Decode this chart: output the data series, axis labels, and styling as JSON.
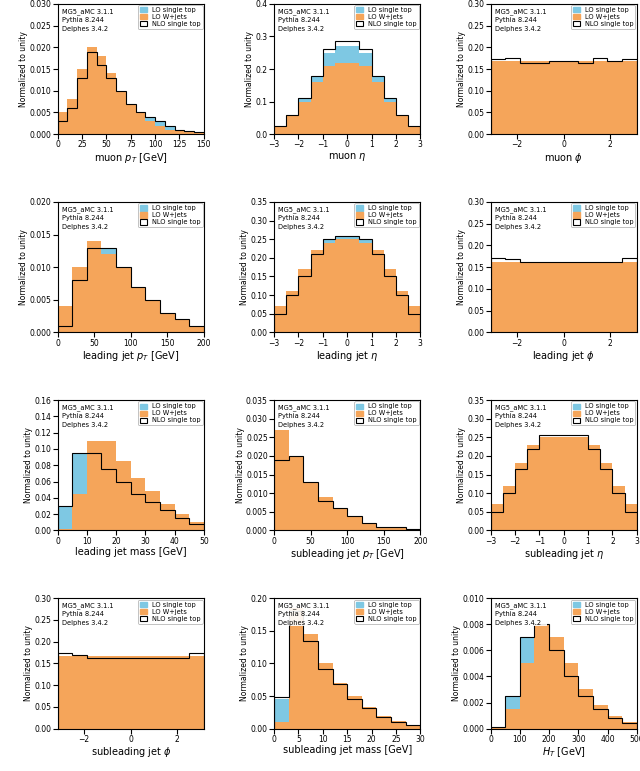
{
  "color_lo_single_top": "#7ec8e3",
  "color_lo_wjets": "#f5a55a",
  "legend_info": "MG5_aMC 3.1.1\nPythia 8.244\nDelphes 3.4.2",
  "plots": [
    {
      "xlabel": "muon $p_T$ [GeV]",
      "xlim": [
        0,
        150
      ],
      "ylim": [
        0,
        0.03
      ],
      "yticks": [
        0.0,
        0.005,
        0.01,
        0.015,
        0.02,
        0.025,
        0.03
      ],
      "lo_st_edges": [
        0,
        10,
        20,
        30,
        40,
        50,
        60,
        70,
        80,
        90,
        100,
        110,
        120,
        130,
        140,
        150
      ],
      "lo_st_vals": [
        0.003,
        0.006,
        0.013,
        0.019,
        0.016,
        0.013,
        0.01,
        0.007,
        0.005,
        0.004,
        0.003,
        0.002,
        0.001,
        0.0008,
        0.0004
      ],
      "lo_wj_edges": [
        0,
        10,
        20,
        30,
        40,
        50,
        60,
        70,
        80,
        90,
        100,
        110,
        120,
        130,
        140,
        150
      ],
      "lo_wj_vals": [
        0.005,
        0.008,
        0.015,
        0.02,
        0.018,
        0.014,
        0.01,
        0.007,
        0.005,
        0.003,
        0.002,
        0.001,
        0.0008,
        0.0005,
        0.0003
      ],
      "nlo_st_edges": [
        0,
        10,
        20,
        30,
        40,
        50,
        60,
        70,
        80,
        90,
        100,
        110,
        120,
        130,
        140,
        150
      ],
      "nlo_st_vals": [
        0.003,
        0.006,
        0.013,
        0.019,
        0.016,
        0.013,
        0.01,
        0.007,
        0.005,
        0.004,
        0.003,
        0.002,
        0.001,
        0.0008,
        0.0004
      ]
    },
    {
      "xlabel": "muon $\\eta$",
      "xlim": [
        -3.0,
        3.0
      ],
      "ylim": [
        0,
        0.4
      ],
      "yticks": [
        0.0,
        0.1,
        0.2,
        0.3,
        0.4
      ],
      "lo_st_edges": [
        -3.0,
        -2.5,
        -2.0,
        -1.5,
        -1.0,
        -0.5,
        0.0,
        0.5,
        1.0,
        1.5,
        2.0,
        2.5,
        3.0
      ],
      "lo_st_vals": [
        0.025,
        0.06,
        0.11,
        0.18,
        0.25,
        0.27,
        0.27,
        0.25,
        0.18,
        0.11,
        0.06,
        0.025
      ],
      "lo_wj_edges": [
        -3.0,
        -2.5,
        -2.0,
        -1.5,
        -1.0,
        -0.5,
        0.0,
        0.5,
        1.0,
        1.5,
        2.0,
        2.5,
        3.0
      ],
      "lo_wj_vals": [
        0.025,
        0.06,
        0.1,
        0.16,
        0.21,
        0.22,
        0.22,
        0.21,
        0.16,
        0.1,
        0.06,
        0.025
      ],
      "nlo_st_edges": [
        -3.0,
        -2.5,
        -2.0,
        -1.5,
        -1.0,
        -0.5,
        0.0,
        0.5,
        1.0,
        1.5,
        2.0,
        2.5,
        3.0
      ],
      "nlo_st_vals": [
        0.025,
        0.06,
        0.11,
        0.18,
        0.26,
        0.285,
        0.285,
        0.26,
        0.18,
        0.11,
        0.06,
        0.025
      ]
    },
    {
      "xlabel": "muon $\\phi$",
      "xlim": [
        -3.14,
        3.14
      ],
      "ylim": [
        0,
        0.3
      ],
      "yticks": [
        0.0,
        0.05,
        0.1,
        0.15,
        0.2,
        0.25,
        0.3
      ],
      "lo_st_edges": [
        -3.14,
        -2.51,
        -1.88,
        -1.26,
        -0.63,
        0.0,
        0.63,
        1.26,
        1.88,
        2.51,
        3.14
      ],
      "lo_st_vals": [
        0.168,
        0.168,
        0.168,
        0.168,
        0.168,
        0.168,
        0.168,
        0.168,
        0.168,
        0.168
      ],
      "lo_wj_edges": [
        -3.14,
        -2.51,
        -1.88,
        -1.26,
        -0.63,
        0.0,
        0.63,
        1.26,
        1.88,
        2.51,
        3.14
      ],
      "lo_wj_vals": [
        0.168,
        0.168,
        0.168,
        0.168,
        0.168,
        0.168,
        0.168,
        0.168,
        0.168,
        0.168
      ],
      "nlo_st_edges": [
        -3.14,
        -2.51,
        -1.88,
        -1.26,
        -0.63,
        0.0,
        0.63,
        1.26,
        1.88,
        2.51,
        3.14
      ],
      "nlo_st_vals": [
        0.172,
        0.175,
        0.165,
        0.165,
        0.168,
        0.168,
        0.165,
        0.175,
        0.168,
        0.172
      ]
    },
    {
      "xlabel": "leading jet $p_T$ [GeV]",
      "xlim": [
        0,
        200
      ],
      "ylim": [
        0,
        0.02
      ],
      "yticks": [
        0.0,
        0.005,
        0.01,
        0.015,
        0.02
      ],
      "lo_st_edges": [
        0,
        20,
        40,
        60,
        80,
        100,
        120,
        140,
        160,
        180,
        200
      ],
      "lo_st_vals": [
        0.001,
        0.007,
        0.013,
        0.013,
        0.01,
        0.007,
        0.005,
        0.003,
        0.002,
        0.001
      ],
      "lo_wj_edges": [
        0,
        20,
        40,
        60,
        80,
        100,
        120,
        140,
        160,
        180,
        200
      ],
      "lo_wj_vals": [
        0.004,
        0.01,
        0.014,
        0.012,
        0.01,
        0.007,
        0.005,
        0.003,
        0.002,
        0.001
      ],
      "nlo_st_edges": [
        0,
        20,
        40,
        60,
        80,
        100,
        120,
        140,
        160,
        180,
        200
      ],
      "nlo_st_vals": [
        0.001,
        0.008,
        0.013,
        0.013,
        0.01,
        0.007,
        0.005,
        0.003,
        0.002,
        0.001
      ]
    },
    {
      "xlabel": "leading jet $\\eta$",
      "xlim": [
        -3.0,
        3.0
      ],
      "ylim": [
        0,
        0.35
      ],
      "yticks": [
        0.0,
        0.05,
        0.1,
        0.15,
        0.2,
        0.25,
        0.3,
        0.35
      ],
      "lo_st_edges": [
        -3.0,
        -2.5,
        -2.0,
        -1.5,
        -1.0,
        -0.5,
        0.0,
        0.5,
        1.0,
        1.5,
        2.0,
        2.5,
        3.0
      ],
      "lo_st_vals": [
        0.05,
        0.1,
        0.15,
        0.21,
        0.25,
        0.26,
        0.26,
        0.25,
        0.21,
        0.15,
        0.1,
        0.05
      ],
      "lo_wj_edges": [
        -3.0,
        -2.5,
        -2.0,
        -1.5,
        -1.0,
        -0.5,
        0.0,
        0.5,
        1.0,
        1.5,
        2.0,
        2.5,
        3.0
      ],
      "lo_wj_vals": [
        0.07,
        0.11,
        0.17,
        0.22,
        0.24,
        0.25,
        0.25,
        0.24,
        0.22,
        0.17,
        0.11,
        0.07
      ],
      "nlo_st_edges": [
        -3.0,
        -2.5,
        -2.0,
        -1.5,
        -1.0,
        -0.5,
        0.0,
        0.5,
        1.0,
        1.5,
        2.0,
        2.5,
        3.0
      ],
      "nlo_st_vals": [
        0.05,
        0.1,
        0.15,
        0.21,
        0.25,
        0.26,
        0.26,
        0.25,
        0.21,
        0.15,
        0.1,
        0.05
      ]
    },
    {
      "xlabel": "leading jet $\\phi$",
      "xlim": [
        -3.14,
        3.14
      ],
      "ylim": [
        0,
        0.3
      ],
      "yticks": [
        0.0,
        0.05,
        0.1,
        0.15,
        0.2,
        0.25,
        0.3
      ],
      "lo_st_edges": [
        -3.14,
        -2.51,
        -1.88,
        -1.26,
        -0.63,
        0.0,
        0.63,
        1.26,
        1.88,
        2.51,
        3.14
      ],
      "lo_st_vals": [
        0.163,
        0.163,
        0.163,
        0.163,
        0.163,
        0.163,
        0.163,
        0.163,
        0.163,
        0.163
      ],
      "lo_wj_edges": [
        -3.14,
        -2.51,
        -1.88,
        -1.26,
        -0.63,
        0.0,
        0.63,
        1.26,
        1.88,
        2.51,
        3.14
      ],
      "lo_wj_vals": [
        0.163,
        0.163,
        0.163,
        0.163,
        0.163,
        0.163,
        0.163,
        0.163,
        0.163,
        0.163
      ],
      "nlo_st_edges": [
        -3.14,
        -2.51,
        -1.88,
        -1.26,
        -0.63,
        0.0,
        0.63,
        1.26,
        1.88,
        2.51,
        3.14
      ],
      "nlo_st_vals": [
        0.17,
        0.168,
        0.163,
        0.163,
        0.163,
        0.163,
        0.163,
        0.163,
        0.163,
        0.17
      ]
    },
    {
      "xlabel": "leading jet mass [GeV]",
      "xlim": [
        0,
        50
      ],
      "ylim": [
        0,
        0.16
      ],
      "yticks": [
        0.0,
        0.02,
        0.04,
        0.06,
        0.08,
        0.1,
        0.12,
        0.14,
        0.16
      ],
      "lo_st_edges": [
        0,
        5,
        10,
        15,
        20,
        25,
        30,
        35,
        40,
        45,
        50
      ],
      "lo_st_vals": [
        0.03,
        0.095,
        0.095,
        0.075,
        0.06,
        0.045,
        0.035,
        0.025,
        0.015,
        0.008
      ],
      "lo_wj_edges": [
        0,
        5,
        10,
        15,
        20,
        25,
        30,
        35,
        40,
        45,
        50
      ],
      "lo_wj_vals": [
        0.002,
        0.045,
        0.11,
        0.11,
        0.085,
        0.065,
        0.048,
        0.032,
        0.02,
        0.01
      ],
      "nlo_st_edges": [
        0,
        5,
        10,
        15,
        20,
        25,
        30,
        35,
        40,
        45,
        50
      ],
      "nlo_st_vals": [
        0.03,
        0.095,
        0.095,
        0.075,
        0.06,
        0.045,
        0.035,
        0.025,
        0.015,
        0.008
      ]
    },
    {
      "xlabel": "subleading jet $p_T$ [GeV]",
      "xlim": [
        0,
        200
      ],
      "ylim": [
        0,
        0.035
      ],
      "yticks": [
        0.0,
        0.005,
        0.01,
        0.015,
        0.02,
        0.025,
        0.03,
        0.035
      ],
      "lo_st_edges": [
        0,
        20,
        40,
        60,
        80,
        100,
        120,
        140,
        160,
        180,
        200
      ],
      "lo_st_vals": [
        0.018,
        0.02,
        0.013,
        0.008,
        0.006,
        0.004,
        0.002,
        0.001,
        0.0008,
        0.0004
      ],
      "lo_wj_edges": [
        0,
        20,
        40,
        60,
        80,
        100,
        120,
        140,
        160,
        180,
        200
      ],
      "lo_wj_vals": [
        0.027,
        0.02,
        0.013,
        0.009,
        0.006,
        0.004,
        0.002,
        0.001,
        0.0008,
        0.0004
      ],
      "nlo_st_edges": [
        0,
        20,
        40,
        60,
        80,
        100,
        120,
        140,
        160,
        180,
        200
      ],
      "nlo_st_vals": [
        0.019,
        0.02,
        0.013,
        0.008,
        0.006,
        0.004,
        0.002,
        0.001,
        0.0008,
        0.0004
      ]
    },
    {
      "xlabel": "subleading jet $\\eta$",
      "xlim": [
        -3.0,
        3.0
      ],
      "ylim": [
        0,
        0.35
      ],
      "yticks": [
        0.0,
        0.05,
        0.1,
        0.15,
        0.2,
        0.25,
        0.3,
        0.35
      ],
      "lo_st_edges": [
        -3.0,
        -2.5,
        -2.0,
        -1.5,
        -1.0,
        -0.5,
        0.0,
        0.5,
        1.0,
        1.5,
        2.0,
        2.5,
        3.0
      ],
      "lo_st_vals": [
        0.05,
        0.1,
        0.16,
        0.22,
        0.25,
        0.25,
        0.25,
        0.25,
        0.22,
        0.16,
        0.1,
        0.05
      ],
      "lo_wj_edges": [
        -3.0,
        -2.5,
        -2.0,
        -1.5,
        -1.0,
        -0.5,
        0.0,
        0.5,
        1.0,
        1.5,
        2.0,
        2.5,
        3.0
      ],
      "lo_wj_vals": [
        0.07,
        0.12,
        0.18,
        0.23,
        0.25,
        0.25,
        0.25,
        0.25,
        0.23,
        0.18,
        0.12,
        0.07
      ],
      "nlo_st_edges": [
        -3.0,
        -2.5,
        -2.0,
        -1.5,
        -1.0,
        -0.5,
        0.0,
        0.5,
        1.0,
        1.5,
        2.0,
        2.5,
        3.0
      ],
      "nlo_st_vals": [
        0.05,
        0.1,
        0.165,
        0.22,
        0.255,
        0.255,
        0.255,
        0.255,
        0.22,
        0.165,
        0.1,
        0.05
      ]
    },
    {
      "xlabel": "subleading jet $\\phi$",
      "xlim": [
        -3.14,
        3.14
      ],
      "ylim": [
        0,
        0.3
      ],
      "yticks": [
        0.0,
        0.05,
        0.1,
        0.15,
        0.2,
        0.25,
        0.3
      ],
      "lo_st_edges": [
        -3.14,
        -2.51,
        -1.88,
        -1.26,
        -0.63,
        0.0,
        0.63,
        1.26,
        1.88,
        2.51,
        3.14
      ],
      "lo_st_vals": [
        0.163,
        0.163,
        0.163,
        0.163,
        0.163,
        0.163,
        0.163,
        0.163,
        0.163,
        0.163
      ],
      "lo_wj_edges": [
        -3.14,
        -2.51,
        -1.88,
        -1.26,
        -0.63,
        0.0,
        0.63,
        1.26,
        1.88,
        2.51,
        3.14
      ],
      "lo_wj_vals": [
        0.168,
        0.168,
        0.168,
        0.168,
        0.168,
        0.168,
        0.168,
        0.168,
        0.168,
        0.168
      ],
      "nlo_st_edges": [
        -3.14,
        -2.51,
        -1.88,
        -1.26,
        -0.63,
        0.0,
        0.63,
        1.26,
        1.88,
        2.51,
        3.14
      ],
      "nlo_st_vals": [
        0.175,
        0.17,
        0.163,
        0.163,
        0.163,
        0.163,
        0.163,
        0.163,
        0.163,
        0.175
      ]
    },
    {
      "xlabel": "subleading jet mass [GeV]",
      "xlim": [
        0,
        30
      ],
      "ylim": [
        0,
        0.2
      ],
      "yticks": [
        0.0,
        0.05,
        0.1,
        0.15,
        0.2
      ],
      "lo_st_edges": [
        0,
        3,
        6,
        9,
        12,
        15,
        18,
        21,
        24,
        27,
        30
      ],
      "lo_st_vals": [
        0.045,
        0.175,
        0.13,
        0.09,
        0.065,
        0.045,
        0.03,
        0.018,
        0.01,
        0.005
      ],
      "lo_wj_edges": [
        0,
        3,
        6,
        9,
        12,
        15,
        18,
        21,
        24,
        27,
        30
      ],
      "lo_wj_vals": [
        0.01,
        0.185,
        0.145,
        0.1,
        0.07,
        0.05,
        0.033,
        0.02,
        0.012,
        0.006
      ],
      "nlo_st_edges": [
        0,
        3,
        6,
        9,
        12,
        15,
        18,
        21,
        24,
        27,
        30
      ],
      "nlo_st_vals": [
        0.048,
        0.18,
        0.135,
        0.092,
        0.068,
        0.046,
        0.031,
        0.018,
        0.01,
        0.005
      ]
    },
    {
      "xlabel": "$H_T$ [GeV]",
      "xlim": [
        0,
        500
      ],
      "ylim": [
        0,
        0.01
      ],
      "yticks": [
        0.0,
        0.002,
        0.004,
        0.006,
        0.008,
        0.01
      ],
      "lo_st_edges": [
        0,
        50,
        100,
        150,
        200,
        250,
        300,
        350,
        400,
        450,
        500
      ],
      "lo_st_vals": [
        0.0001,
        0.0025,
        0.007,
        0.008,
        0.006,
        0.004,
        0.0025,
        0.0015,
        0.0008,
        0.0004
      ],
      "lo_wj_edges": [
        0,
        50,
        100,
        150,
        200,
        250,
        300,
        350,
        400,
        450,
        500
      ],
      "lo_wj_vals": [
        0.0001,
        0.0015,
        0.005,
        0.008,
        0.007,
        0.005,
        0.003,
        0.0018,
        0.001,
        0.0005
      ],
      "nlo_st_edges": [
        0,
        50,
        100,
        150,
        200,
        250,
        300,
        350,
        400,
        450,
        500
      ],
      "nlo_st_vals": [
        0.0001,
        0.0025,
        0.007,
        0.008,
        0.006,
        0.004,
        0.0025,
        0.0015,
        0.0008,
        0.0004
      ]
    }
  ]
}
